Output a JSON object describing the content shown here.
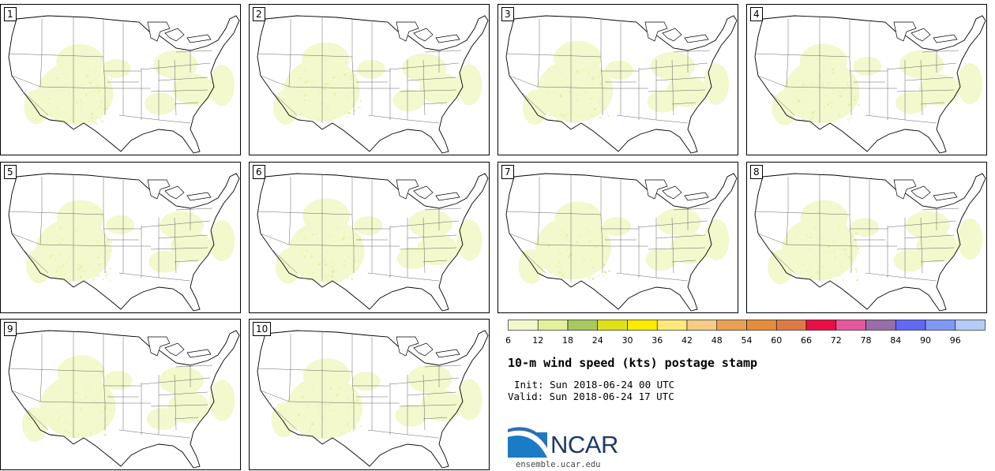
{
  "panels": [
    {
      "label": "1"
    },
    {
      "label": "2"
    },
    {
      "label": "3"
    },
    {
      "label": "4"
    },
    {
      "label": "5"
    },
    {
      "label": "6"
    },
    {
      "label": "7"
    },
    {
      "label": "8"
    },
    {
      "label": "9"
    },
    {
      "label": "10"
    }
  ],
  "colorbar": {
    "ticks": [
      "6",
      "12",
      "18",
      "24",
      "30",
      "36",
      "42",
      "48",
      "54",
      "60",
      "66",
      "72",
      "78",
      "84",
      "90",
      "96"
    ],
    "colors": [
      "#f3f8cd",
      "#e2f19b",
      "#a9c95d",
      "#dfe21b",
      "#fcea00",
      "#fde87a",
      "#f5cc86",
      "#eba151",
      "#e68c3d",
      "#de7b42",
      "#ea0e46",
      "#e3589f",
      "#976ea8",
      "#6267f4",
      "#7e99f7",
      "#b6cbf8"
    ]
  },
  "title": "10-m wind speed (kts) postage stamp",
  "init_text": "Init: Sun 2018-06-24 00 UTC",
  "valid_text": "Valid: Sun 2018-06-24 17 UTC",
  "logo": {
    "text": "NCAR",
    "brand_color": "#1c3a66",
    "swoosh_color": "#3d8fd0"
  },
  "site_url": "ensemble.ucar.edu"
}
